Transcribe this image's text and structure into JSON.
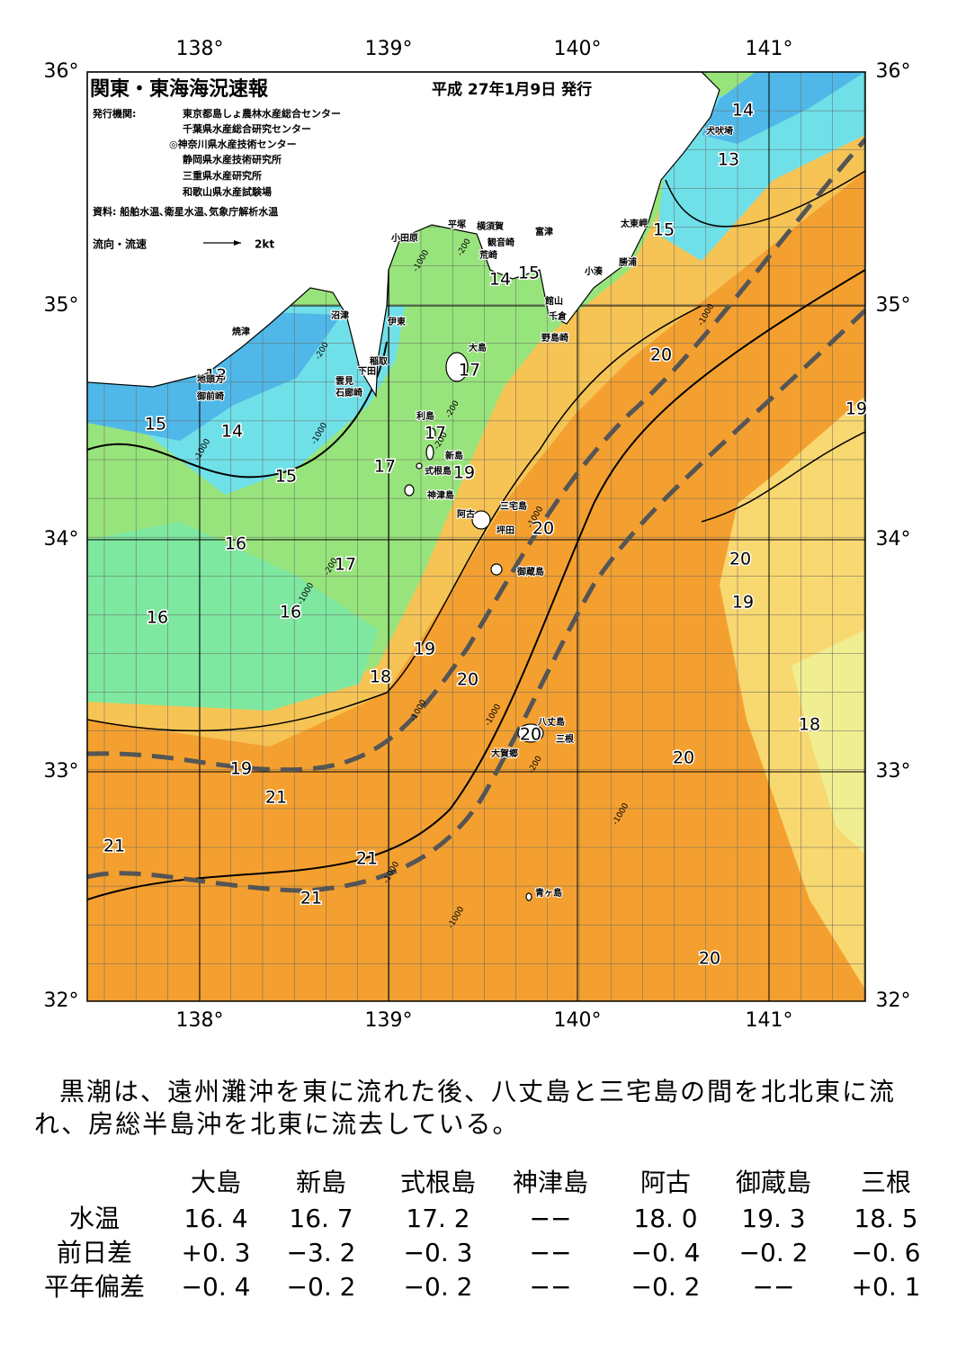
{
  "header": {
    "title": "関東・東海海況速報",
    "date": "平成 27年1月9日 発行",
    "publisher_label": "発行機関:",
    "publishers": [
      "東京都島しょ農林水産総合センター",
      "千葉県水産総合研究センター",
      "◎神奈川県水産技術センター",
      "静岡県水産技術研究所",
      "三重県水産研究所",
      "和歌山県水産試験場"
    ],
    "source": "資料: 船舶水温､衛星水温､気象庁解析水温",
    "legend_label": "流向・流速",
    "legend_scale": "2kt"
  },
  "axes": {
    "lon_labels": [
      "138°",
      "139°",
      "140°",
      "141°"
    ],
    "lat_labels": [
      "36°",
      "35°",
      "34°",
      "33°",
      "32°"
    ]
  },
  "contour_labels": [
    "14",
    "13",
    "15",
    "15",
    "14",
    "20",
    "19",
    "13",
    "14",
    "15",
    "15",
    "17",
    "17",
    "17",
    "19",
    "20",
    "16",
    "17",
    "16",
    "16",
    "20",
    "19",
    "19",
    "18",
    "20",
    "18",
    "20",
    "20",
    "19",
    "21",
    "21",
    "21",
    "21",
    "20"
  ],
  "depth_labels": [
    "-1000",
    "-200",
    "-1000",
    "-200",
    "-1000",
    "-1000",
    "-200",
    "-200",
    "-1000",
    "-200",
    "-1000",
    "-1000",
    "-1000",
    "-200",
    "-1000",
    "-1000",
    "-1000"
  ],
  "place_names": [
    "犬吠埼",
    "太東岬",
    "勝浦",
    "小湊",
    "富津",
    "横須賀",
    "観音崎",
    "平塚",
    "荒崎",
    "小田原",
    "館山",
    "千倉",
    "野島崎",
    "沼津",
    "伊東",
    "焼津",
    "大島",
    "稲取",
    "下田",
    "雲見",
    "石廊崎",
    "地頭方",
    "御前崎",
    "利島",
    "新島",
    "式根島",
    "神津島",
    "三宅島",
    "阿古",
    "坪田",
    "御蔵島",
    "八丈島",
    "三根",
    "大賀郷",
    "青ヶ島"
  ],
  "description": "黒潮は、遠州灘沖を東に流れた後、八丈島と三宅島の間を北北東に流れ、房総半島沖を北東に流去している。",
  "table": {
    "columns": [
      "大島",
      "新島",
      "式根島",
      "神津島",
      "阿古",
      "御蔵島",
      "三根"
    ],
    "rows": [
      {
        "label": "水温",
        "values": [
          "16. 4",
          "16. 7",
          "17. 2",
          "−−",
          "18. 0",
          "19. 3",
          "18. 5"
        ]
      },
      {
        "label": "前日差",
        "values": [
          "+0. 3",
          "−3. 2",
          "−0. 3",
          "−−",
          "−0. 4",
          "−0. 2",
          "−0. 6"
        ]
      },
      {
        "label": "平年偏差",
        "values": [
          "−0. 4",
          "−0. 2",
          "−0. 2",
          "−−",
          "−0. 2",
          "−−",
          "+0. 1"
        ]
      }
    ]
  }
}
